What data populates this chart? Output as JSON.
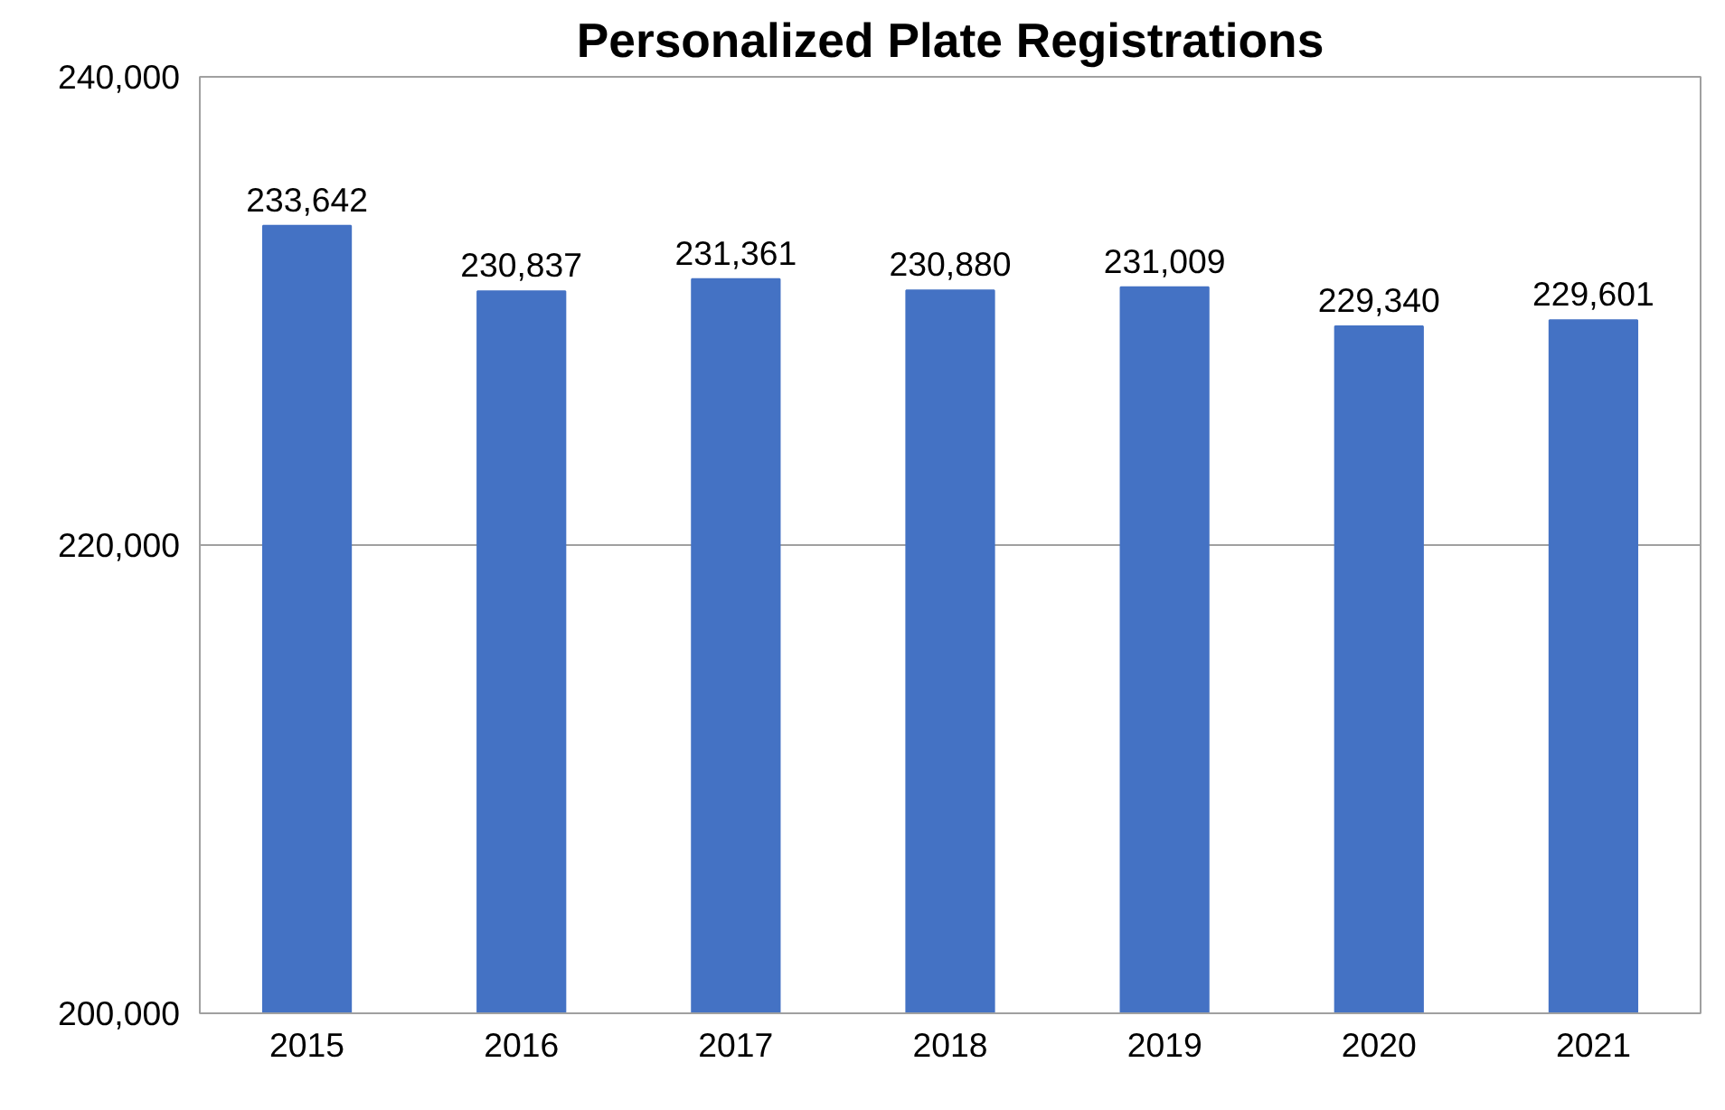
{
  "chart_data": {
    "type": "bar",
    "title": "Personalized Plate Registrations",
    "categories": [
      "2015",
      "2016",
      "2017",
      "2018",
      "2019",
      "2020",
      "2021"
    ],
    "values": [
      233642,
      230837,
      231361,
      230880,
      231009,
      229340,
      229601
    ],
    "color": "#4472c4",
    "ylim": [
      200000,
      240000
    ],
    "yticks": [
      {
        "value": 200000,
        "label": "200,000"
      },
      {
        "value": 220000,
        "label": "220,000"
      },
      {
        "value": 240000,
        "label": "240,000"
      }
    ],
    "value_labels": [
      "233,642",
      "230,837",
      "231,361",
      "230,880",
      "231,009",
      "229,340",
      "229,601"
    ],
    "grid": "y"
  }
}
